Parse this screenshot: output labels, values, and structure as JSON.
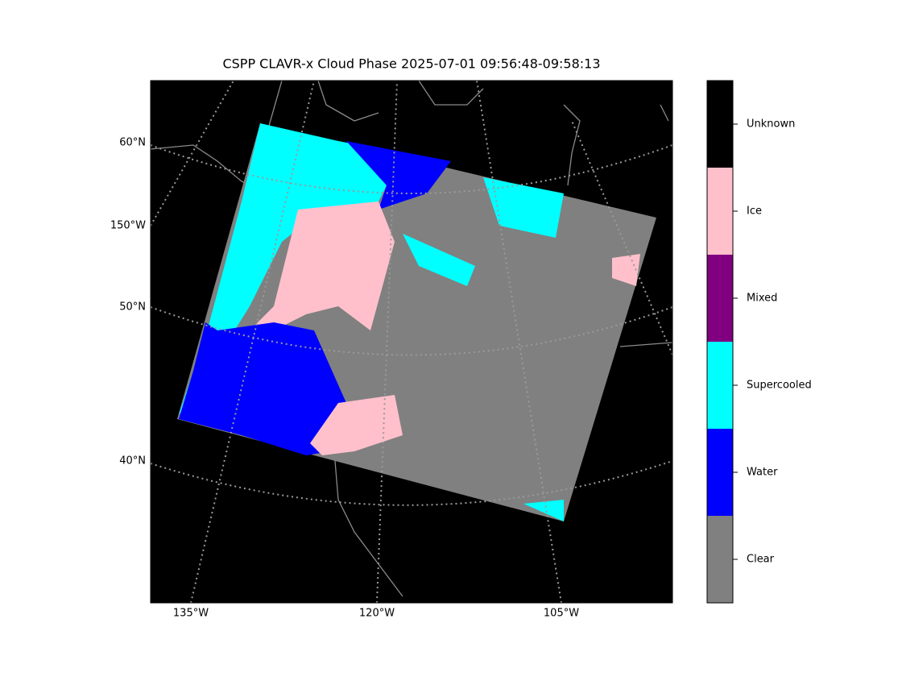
{
  "title": "CSPP CLAVR-x Cloud Phase 2025-07-01 09:56:48-09:58:13",
  "map": {
    "left_labels": [
      "60°N",
      "150°W",
      "50°N",
      "40°N"
    ],
    "bottom_labels": [
      "135°W",
      "120°W",
      "105°W"
    ]
  },
  "colorbar": {
    "categories": [
      {
        "label": "Unknown",
        "color": "#000000"
      },
      {
        "label": "Ice",
        "color": "#ffc0cb"
      },
      {
        "label": "Mixed",
        "color": "#800080"
      },
      {
        "label": "Supercooled",
        "color": "#00ffff"
      },
      {
        "label": "Water",
        "color": "#0000ff"
      },
      {
        "label": "Clear",
        "color": "#808080"
      }
    ]
  }
}
